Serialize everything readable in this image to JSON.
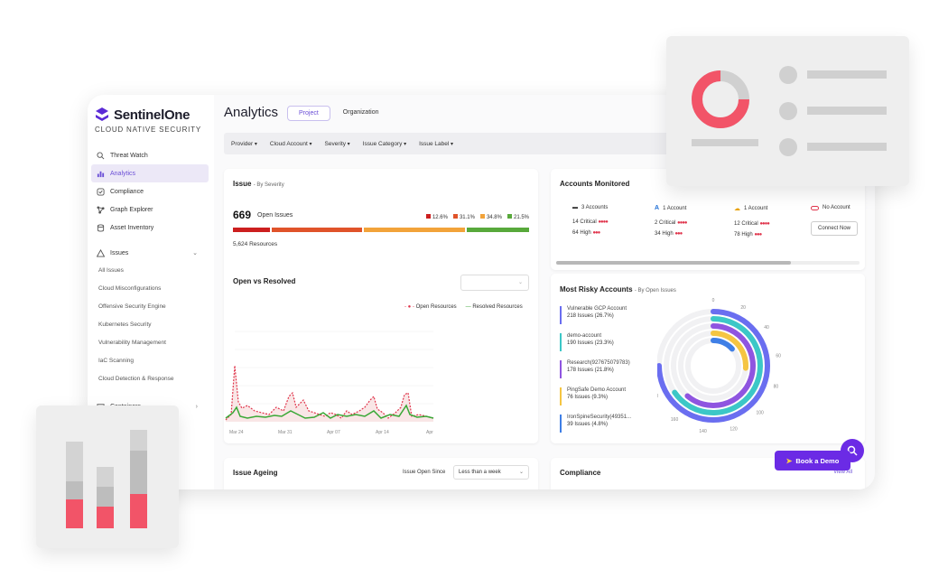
{
  "brand": {
    "name": "SentinelOne",
    "subtitle": "CLOUD NATIVE SECURITY"
  },
  "sidebar": {
    "items": [
      {
        "label": "Threat Watch",
        "icon": "search-icon"
      },
      {
        "label": "Analytics",
        "icon": "bar-chart-icon",
        "active": true
      },
      {
        "label": "Compliance",
        "icon": "check-square-icon"
      },
      {
        "label": "Graph Explorer",
        "icon": "graph-icon"
      },
      {
        "label": "Asset Inventory",
        "icon": "database-icon"
      }
    ],
    "issues_group": "Issues",
    "issues_sub": [
      "All Issues",
      "Cloud Misconfigurations",
      "Offensive Security Engine",
      "Kubernetes Security",
      "Vulnerability Management",
      "IaC Scanning",
      "Cloud Detection & Response"
    ],
    "containers_group": "Containers"
  },
  "header": {
    "title": "Analytics",
    "tabs": [
      "Project",
      "Organization"
    ],
    "filters": [
      "Provider",
      "Cloud Account",
      "Severity",
      "Issue Category",
      "Issue Label"
    ]
  },
  "issue_card": {
    "title": "Issue",
    "subtitle": "- By Severity",
    "count": "669",
    "count_label": "Open Issues",
    "legend": [
      {
        "label": "12.6%",
        "color": "#cc1f1f"
      },
      {
        "label": "31.1%",
        "color": "#e0532a"
      },
      {
        "label": "34.8%",
        "color": "#f2a33a"
      },
      {
        "label": "21.5%",
        "color": "#58a93b"
      }
    ],
    "resources": "5,624 Resources"
  },
  "open_vs_resolved": {
    "title": "Open vs Resolved",
    "legend": [
      "Open Resources",
      "Resolved Resources"
    ],
    "x_ticks": [
      "Mar 24",
      "Mar 31",
      "Apr 07",
      "Apr 14",
      "Apr"
    ]
  },
  "accounts_card": {
    "title": "Accounts Monitored",
    "columns": [
      {
        "label": "3 Accounts",
        "critical": "14 Critical",
        "high": "64 High",
        "icon": "aws-icon"
      },
      {
        "label": "1 Account",
        "critical": "2 Critical",
        "high": "34 High",
        "icon": "azure-icon"
      },
      {
        "label": "1 Account",
        "critical": "12 Critical",
        "high": "78 High",
        "icon": "gcp-icon"
      },
      {
        "label": "No Account",
        "button": "Connect Now",
        "icon": "oracle-icon"
      }
    ]
  },
  "risky_card": {
    "title": "Most Risky Accounts",
    "subtitle": "- By Open Issues",
    "items": [
      {
        "name": "Vulnerable GCP Account",
        "count": "218 Issues (26.7%)",
        "color": "#6a6ef0"
      },
      {
        "name": "demo-account",
        "count": "190 Issues (23.3%)",
        "color": "#3cc7c7"
      },
      {
        "name": "Research(927675079783)",
        "count": "178 Issues (21.8%)",
        "color": "#8f55e0"
      },
      {
        "name": "PingSafe Demo Account",
        "count": "76 Issues (9.3%)",
        "color": "#f5c542"
      },
      {
        "name": "IronSpineSecurity(49351...",
        "count": "39 Issues (4.8%)",
        "color": "#3f7fe6"
      }
    ],
    "radial_ticks": [
      "0",
      "20",
      "40",
      "60",
      "80",
      "100",
      "120",
      "140",
      "160",
      "180",
      "200"
    ]
  },
  "ageing_card": {
    "title": "Issue Ageing",
    "since_label": "Issue Open Since",
    "since_value": "Less than a week"
  },
  "compliance_card": {
    "title": "Compliance",
    "link": "View All"
  },
  "book_demo": "Book a Demo"
}
